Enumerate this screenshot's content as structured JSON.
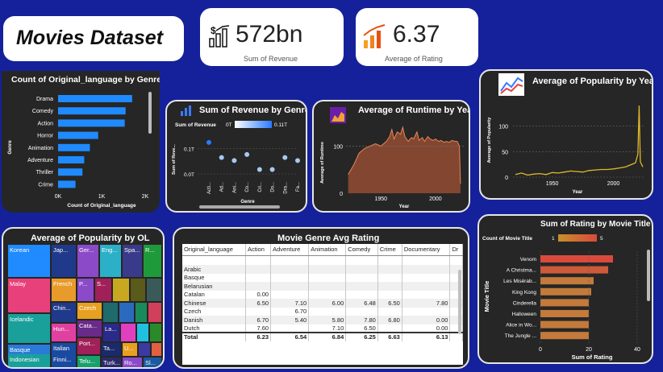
{
  "title": "Movies Dataset",
  "kpis": {
    "revenue": {
      "value": "572bn",
      "label": "Sum of Revenue"
    },
    "rating": {
      "value": "6.37",
      "label": "Average of Rating"
    }
  },
  "icons": {
    "revenue": "money-bar-chart-icon",
    "rating": "rising-bar-chart-icon",
    "popularity": "line-chart-icon",
    "runtime": "area-chart-icon",
    "genre": "bar-chart-icon"
  },
  "lang_by_genre": {
    "title": "Count of Original_language by Genre",
    "ylabel": "Genre",
    "xlabel": "Count of Original_language",
    "ticks": [
      "0K",
      "1K",
      "2K"
    ]
  },
  "rev_by_genre": {
    "title": "Sum of Revenue by Genre",
    "legend_label": "Sum of Revenue",
    "legend_min": "0T",
    "legend_max": "0.11T",
    "ylabel": "Sum of Reve...",
    "xlabel": "Genre",
    "yticks": [
      "0.1T",
      "0.0T"
    ]
  },
  "runtime": {
    "title": "Average of Runtime by Year",
    "ylabel": "Average of Runtime",
    "xlabel": "Year",
    "yticks": [
      "100",
      "0"
    ],
    "xticks": [
      "1950",
      "2000"
    ]
  },
  "popularity_year": {
    "title": "Average of Popularity by Year",
    "ylabel": "Average of Popularity",
    "xlabel": "Year",
    "yticks": [
      "100",
      "50",
      "0"
    ],
    "xticks": [
      "1950",
      "2000"
    ]
  },
  "popularity_ol": {
    "title": "Average of Popularity by OL",
    "labels": [
      "Korean",
      "Jap...",
      "Ger...",
      "Eng...",
      "Spa...",
      "R...",
      "Malay",
      "French",
      "P...",
      "S...",
      "Chin...",
      "Czech",
      "Icelandic",
      "Hun...",
      "Cata...",
      "La...",
      "Basque",
      "Italian",
      "Port...",
      "Ta...",
      "U...",
      "Indonesian",
      "Finni...",
      "Telu...",
      "Turk...",
      "Ro...",
      "Sl..."
    ]
  },
  "genre_table": {
    "title": "Movie Genre Avg Rating",
    "headers": [
      "Original_language",
      "Action",
      "Adventure",
      "Animation",
      "Comedy",
      "Crime",
      "Documentary",
      "Dr"
    ],
    "rows": [
      [
        "Arabic",
        "",
        "",
        "",
        "",
        "",
        "",
        ""
      ],
      [
        "Basque",
        "",
        "",
        "",
        "",
        "",
        "",
        ""
      ],
      [
        "Belarusian",
        "",
        "",
        "",
        "",
        "",
        "",
        ""
      ],
      [
        "Catalan",
        "0.00",
        "",
        "",
        "",
        "",
        "",
        ""
      ],
      [
        "Chinese",
        "6.50",
        "7.10",
        "6.00",
        "6.48",
        "6.50",
        "7.80",
        ""
      ],
      [
        "Czech",
        "",
        "6.70",
        "",
        "",
        "",
        "",
        ""
      ],
      [
        "Danish",
        "6.70",
        "5.40",
        "5.80",
        "7.80",
        "6.80",
        "0.00",
        ""
      ],
      [
        "Dutch",
        "7.60",
        "",
        "7.10",
        "6.50",
        "",
        "0.00",
        ""
      ]
    ],
    "total": [
      "Total",
      "6.23",
      "6.54",
      "6.84",
      "6.25",
      "6.63",
      "6.13",
      ""
    ]
  },
  "rating_by_title": {
    "title": "Sum of Rating by Movie Title",
    "legend_label": "Count of Movie Title",
    "legend_min": "1",
    "legend_max": "5",
    "ylabel": "Movie Title",
    "xlabel": "Sum of Rating",
    "xticks": [
      "0",
      "20",
      "40"
    ]
  },
  "chart_data": [
    {
      "type": "bar",
      "title": "Count of Original_language by Genre",
      "categories": [
        "Drama",
        "Comedy",
        "Action",
        "Horror",
        "Animation",
        "Adventure",
        "Thriller",
        "Crime"
      ],
      "values": [
        1700,
        1550,
        1530,
        920,
        730,
        600,
        560,
        400
      ],
      "xlabel": "Count of Original_language",
      "ylabel": "Genre",
      "xlim": [
        0,
        2000
      ]
    },
    {
      "type": "scatter",
      "title": "Sum of Revenue by Genre",
      "categories": [
        "Acti...",
        "Ad...",
        "Ani...",
        "Co...",
        "Cri...",
        "Do...",
        "Dra...",
        "Fa..."
      ],
      "values": [
        0.11,
        0.06,
        0.05,
        0.07,
        0.02,
        0.02,
        0.06,
        0.05
      ],
      "xlabel": "Genre",
      "ylabel": "Sum of Reve...",
      "ylim": [
        0,
        0.15
      ]
    },
    {
      "type": "area",
      "title": "Average of Runtime by Year",
      "x": [
        1920,
        1925,
        1930,
        1935,
        1940,
        1945,
        1950,
        1955,
        1958,
        1960,
        1962,
        1965,
        1968,
        1970,
        1972,
        1975,
        1978,
        1980,
        1983,
        1985,
        1988,
        1990,
        1993,
        1995,
        1998,
        2000,
        2003,
        2005,
        2008,
        2010,
        2013,
        2015,
        2018,
        2020,
        2022,
        2023
      ],
      "values": [
        40,
        60,
        85,
        95,
        100,
        105,
        100,
        110,
        120,
        135,
        115,
        130,
        125,
        140,
        120,
        110,
        118,
        115,
        130,
        112,
        118,
        110,
        120,
        115,
        112,
        115,
        110,
        112,
        108,
        110,
        108,
        112,
        110,
        110,
        100,
        20
      ],
      "xlabel": "Year",
      "ylabel": "Average of Runtime",
      "ylim": [
        0,
        140
      ]
    },
    {
      "type": "line",
      "title": "Average of Popularity by Year",
      "x": [
        1920,
        1925,
        1930,
        1935,
        1940,
        1945,
        1950,
        1955,
        1960,
        1965,
        1970,
        1975,
        1980,
        1985,
        1990,
        1995,
        2000,
        2005,
        2010,
        2012,
        2015,
        2018,
        2020,
        2021,
        2022,
        2023,
        2024
      ],
      "values": [
        5,
        8,
        4,
        6,
        7,
        5,
        9,
        8,
        10,
        12,
        11,
        10,
        13,
        14,
        15,
        15,
        16,
        18,
        20,
        22,
        25,
        28,
        45,
        140,
        30,
        25,
        20
      ],
      "xlabel": "Year",
      "ylabel": "Average of Popularity",
      "ylim": [
        0,
        140
      ]
    },
    {
      "type": "bar",
      "title": "Sum of Rating by Movie Title",
      "categories": [
        "Venom",
        "A Christma...",
        "Les Misérab...",
        "King Kong",
        "Cinderella",
        "Halloween",
        "Alice in Wo...",
        "The Jungle ..."
      ],
      "values": [
        30,
        28,
        22,
        21,
        20,
        20,
        20,
        20
      ],
      "counts": [
        5,
        4,
        3,
        3,
        3,
        3,
        3,
        3
      ],
      "xlabel": "Sum of Rating",
      "ylabel": "Movie Title",
      "xlim": [
        0,
        42
      ]
    }
  ],
  "colors": {
    "background": "#15219a",
    "panel": "#262626",
    "bar_blue": "#1f8bff",
    "area_orange": "#e8895a",
    "line_yellow": "#e0b92a",
    "bar_red": "#d94a3c",
    "bar_orange": "#c47a3a"
  }
}
